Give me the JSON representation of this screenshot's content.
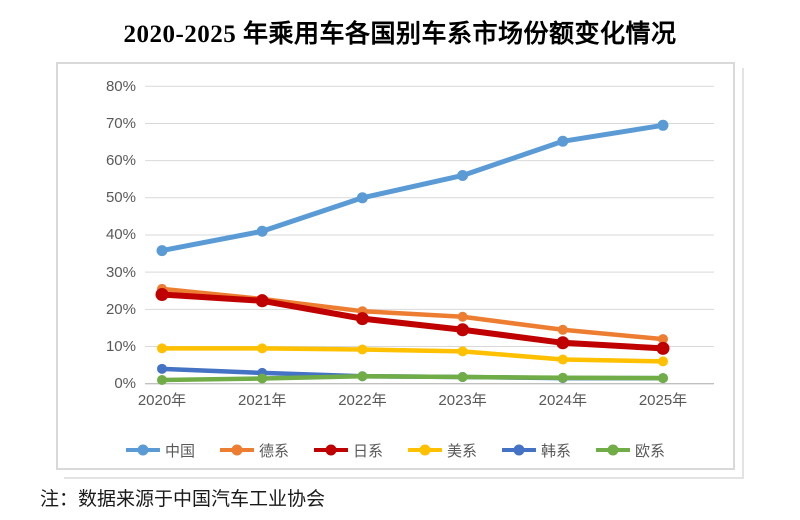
{
  "chart_data": {
    "type": "line",
    "title": "2020-2025 年乘用车各国别车系市场份额变化情况",
    "note": "注：数据来源于中国汽车工业协会",
    "categories": [
      "2020年",
      "2021年",
      "2022年",
      "2023年",
      "2024年",
      "2025年"
    ],
    "y_ticks": [
      "0%",
      "10%",
      "20%",
      "30%",
      "40%",
      "50%",
      "60%",
      "70%",
      "80%"
    ],
    "ylim": [
      0,
      80
    ],
    "ylabel": "",
    "xlabel": "",
    "grid": true,
    "legend_position": "bottom",
    "axis_text_color": "#595959",
    "grid_color": "#d9d9d9",
    "series": [
      {
        "key": "china",
        "name": "中国",
        "color": "#5B9BD5",
        "line_width": 5,
        "values": [
          35.8,
          41,
          50,
          56,
          65.2,
          69.5
        ]
      },
      {
        "key": "german",
        "name": "德系",
        "color": "#ED7D31",
        "line_width": 4.5,
        "values": [
          25.5,
          22.8,
          19.5,
          18,
          14.5,
          12
        ]
      },
      {
        "key": "japanese",
        "name": "日系",
        "color": "#C00000",
        "line_width": 6,
        "values": [
          24,
          22.3,
          17.5,
          14.5,
          11,
          9.5
        ]
      },
      {
        "key": "american",
        "name": "美系",
        "color": "#FFC000",
        "line_width": 4.5,
        "values": [
          9.5,
          9.5,
          9.2,
          8.7,
          6.5,
          6
        ]
      },
      {
        "key": "korean",
        "name": "韩系",
        "color": "#4472C4",
        "line_width": 4.5,
        "values": [
          4,
          2.9,
          2,
          1.8,
          1.5,
          1.5
        ]
      },
      {
        "key": "european",
        "name": "欧系",
        "color": "#70AD47",
        "line_width": 4.5,
        "values": [
          1,
          1.4,
          2,
          1.8,
          1.6,
          1.5
        ]
      }
    ]
  }
}
